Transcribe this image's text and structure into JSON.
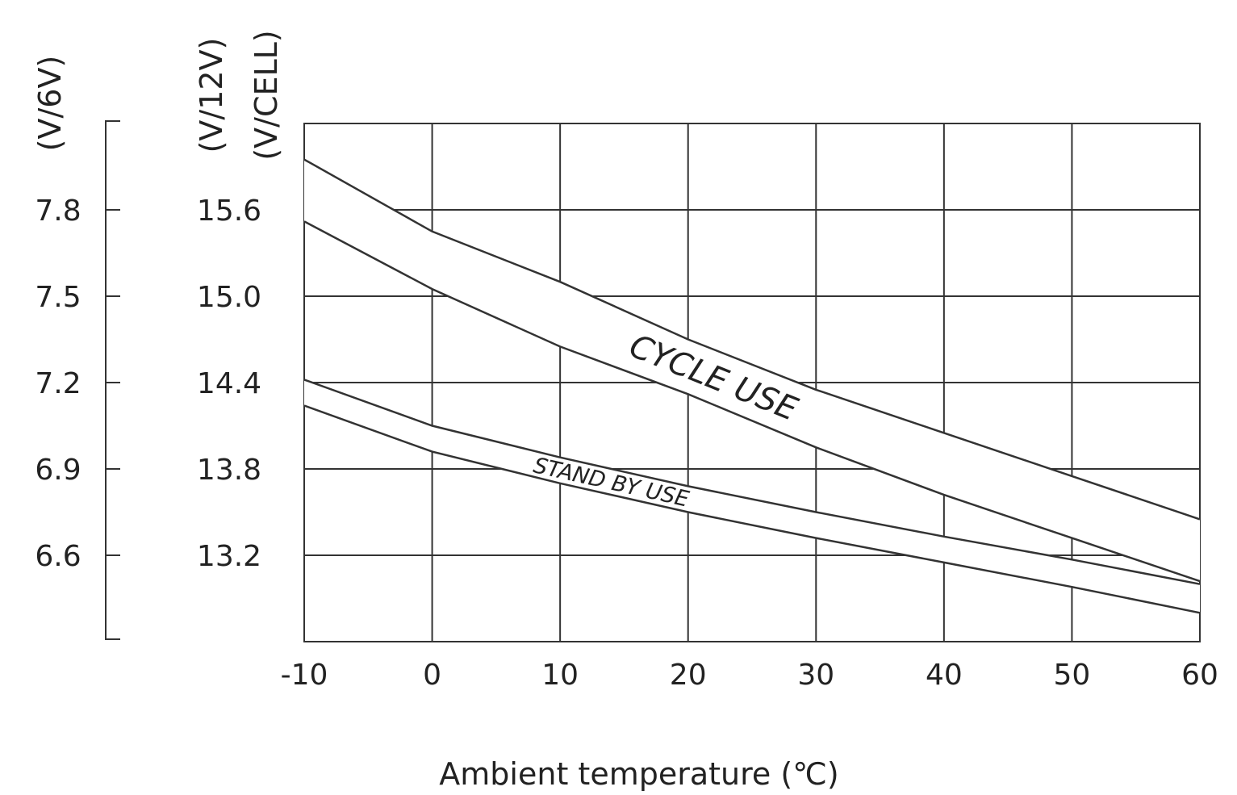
{
  "chart_data": {
    "type": "line",
    "xlabel": "Ambient temperature (℃)",
    "xlim": [
      -10,
      60
    ],
    "x_ticks": [
      "-10",
      "0",
      "10",
      "20",
      "30",
      "40",
      "50",
      "60"
    ],
    "ylim_12v": [
      12.6,
      16.2
    ],
    "y_axes": [
      {
        "label": "(V/6V)",
        "ticks": [
          "7.8",
          "7.5",
          "7.2",
          "6.9",
          "6.6"
        ],
        "tick_values_12v": [
          15.6,
          15.0,
          14.4,
          13.8,
          13.2
        ]
      },
      {
        "label": "(V/12V)",
        "ticks": [
          "15.6",
          "15.0",
          "14.4",
          "13.8",
          "13.2"
        ],
        "tick_values_12v": [
          15.6,
          15.0,
          14.4,
          13.8,
          13.2
        ]
      },
      {
        "label": "(V/CELL)",
        "ticks": [],
        "tick_values_12v": []
      }
    ],
    "grid": true,
    "x": [
      -10,
      0,
      10,
      20,
      30,
      40,
      50,
      60
    ],
    "bands": [
      {
        "name": "CYCLE USE",
        "upper": [
          15.95,
          15.45,
          15.1,
          14.7,
          14.35,
          14.05,
          13.75,
          13.45
        ],
        "lower": [
          15.52,
          15.05,
          14.65,
          14.32,
          13.95,
          13.62,
          13.32,
          13.02
        ]
      },
      {
        "name": "STAND BY USE",
        "upper": [
          14.42,
          14.1,
          13.88,
          13.68,
          13.5,
          13.33,
          13.17,
          13.0
        ],
        "lower": [
          14.24,
          13.92,
          13.7,
          13.5,
          13.32,
          13.15,
          12.98,
          12.8
        ]
      }
    ]
  }
}
